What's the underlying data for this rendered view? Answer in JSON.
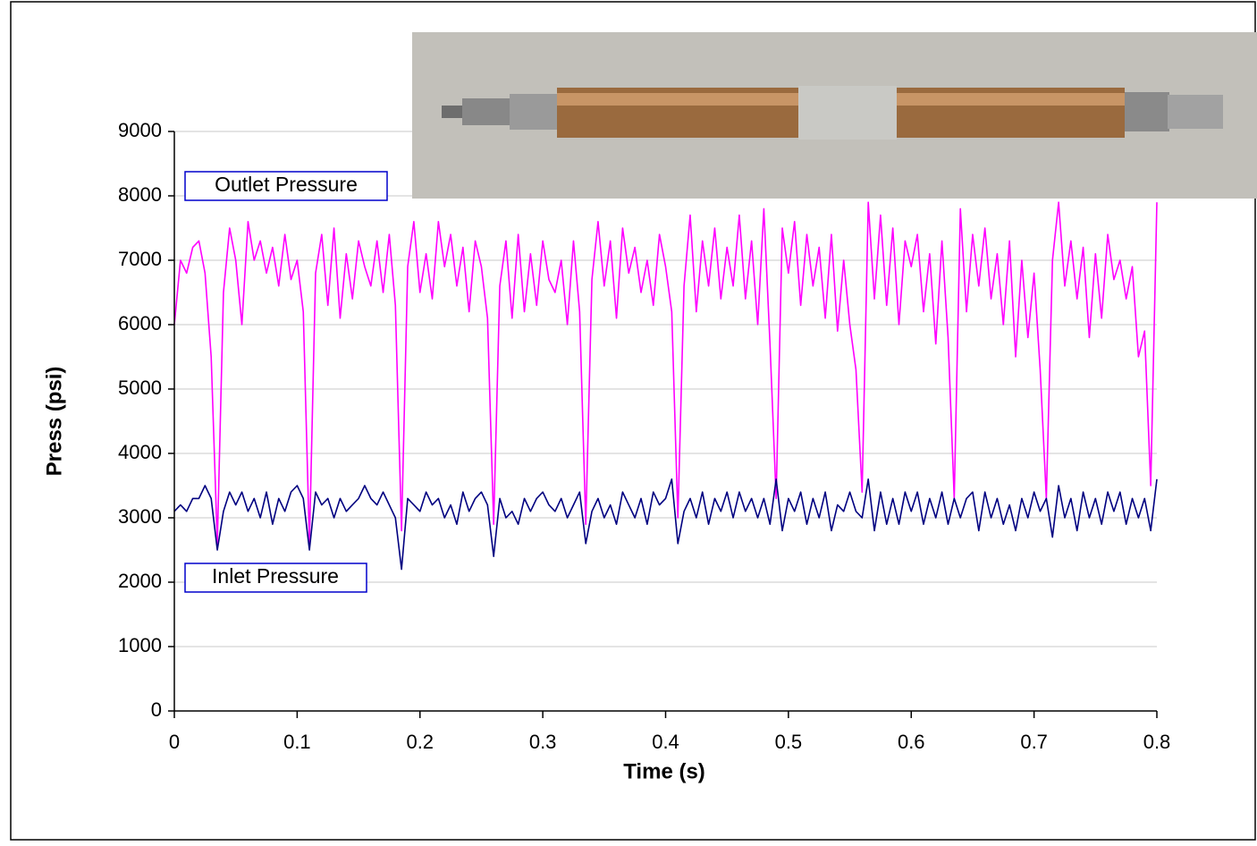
{
  "chart_data": {
    "type": "line",
    "x_label": "Time (s)",
    "y_label": "Press (psi)",
    "x": [
      0,
      0.005,
      0.01,
      0.015,
      0.02,
      0.025,
      0.03,
      0.035,
      0.04,
      0.045,
      0.05,
      0.055,
      0.06,
      0.065,
      0.07,
      0.075,
      0.08,
      0.085,
      0.09,
      0.095,
      0.1,
      0.105,
      0.11,
      0.115,
      0.12,
      0.125,
      0.13,
      0.135,
      0.14,
      0.145,
      0.15,
      0.155,
      0.16,
      0.165,
      0.17,
      0.175,
      0.18,
      0.185,
      0.19,
      0.195,
      0.2,
      0.205,
      0.21,
      0.215,
      0.22,
      0.225,
      0.23,
      0.235,
      0.24,
      0.245,
      0.25,
      0.255,
      0.26,
      0.265,
      0.27,
      0.275,
      0.28,
      0.285,
      0.29,
      0.295,
      0.3,
      0.305,
      0.31,
      0.315,
      0.32,
      0.325,
      0.33,
      0.335,
      0.34,
      0.345,
      0.35,
      0.355,
      0.36,
      0.365,
      0.37,
      0.375,
      0.38,
      0.385,
      0.39,
      0.395,
      0.4,
      0.405,
      0.41,
      0.415,
      0.42,
      0.425,
      0.43,
      0.435,
      0.44,
      0.445,
      0.45,
      0.455,
      0.46,
      0.465,
      0.47,
      0.475,
      0.48,
      0.485,
      0.49,
      0.495,
      0.5,
      0.505,
      0.51,
      0.515,
      0.52,
      0.525,
      0.53,
      0.535,
      0.54,
      0.545,
      0.55,
      0.555,
      0.56,
      0.565,
      0.57,
      0.575,
      0.58,
      0.585,
      0.59,
      0.595,
      0.6,
      0.605,
      0.61,
      0.615,
      0.62,
      0.625,
      0.63,
      0.635,
      0.64,
      0.645,
      0.65,
      0.655,
      0.66,
      0.665,
      0.67,
      0.675,
      0.68,
      0.685,
      0.69,
      0.695,
      0.7,
      0.705,
      0.71,
      0.715,
      0.72,
      0.725,
      0.73,
      0.735,
      0.74,
      0.745,
      0.75,
      0.755,
      0.76,
      0.765,
      0.77,
      0.775,
      0.78,
      0.785,
      0.79,
      0.795,
      0.8
    ],
    "series": [
      {
        "name": "Outlet Pressure",
        "color": "#ff00ff",
        "values": [
          6000,
          7000,
          6800,
          7200,
          7300,
          6800,
          5500,
          2600,
          6500,
          7500,
          7000,
          6000,
          7600,
          7000,
          7300,
          6800,
          7200,
          6600,
          7400,
          6700,
          7000,
          6200,
          2600,
          6800,
          7400,
          6300,
          7500,
          6100,
          7100,
          6400,
          7300,
          6900,
          6600,
          7300,
          6500,
          7400,
          6300,
          2800,
          6900,
          7600,
          6500,
          7100,
          6400,
          7600,
          6900,
          7400,
          6600,
          7200,
          6200,
          7300,
          6900,
          6100,
          2900,
          6600,
          7300,
          6100,
          7400,
          6200,
          7100,
          6300,
          7300,
          6700,
          6500,
          7000,
          6000,
          7300,
          6200,
          2900,
          6700,
          7600,
          6600,
          7300,
          6100,
          7500,
          6800,
          7200,
          6500,
          7000,
          6300,
          7400,
          6900,
          6200,
          3000,
          6600,
          7700,
          6200,
          7300,
          6600,
          7500,
          6400,
          7200,
          6600,
          7700,
          6400,
          7300,
          6000,
          7800,
          5700,
          3300,
          7500,
          6800,
          7600,
          6300,
          7400,
          6600,
          7200,
          6100,
          7400,
          5900,
          7000,
          6000,
          5300,
          3400,
          7900,
          6400,
          7700,
          6300,
          7500,
          6000,
          7300,
          6900,
          7400,
          6200,
          7100,
          5700,
          7300,
          5800,
          3300,
          7800,
          6200,
          7400,
          6600,
          7500,
          6400,
          7100,
          6000,
          7300,
          5500,
          7000,
          5800,
          6800,
          5300,
          3300,
          7000,
          7900,
          6600,
          7300,
          6400,
          7200,
          5800,
          7100,
          6100,
          7400,
          6700,
          7000,
          6400,
          6900,
          5500,
          5900,
          3500,
          7900
        ]
      },
      {
        "name": "Inlet Pressure",
        "color": "#000080",
        "values": [
          3100,
          3200,
          3100,
          3300,
          3300,
          3500,
          3300,
          2500,
          3100,
          3400,
          3200,
          3400,
          3100,
          3300,
          3000,
          3400,
          2900,
          3300,
          3100,
          3400,
          3500,
          3300,
          2500,
          3400,
          3200,
          3300,
          3000,
          3300,
          3100,
          3200,
          3300,
          3500,
          3300,
          3200,
          3400,
          3200,
          3000,
          2200,
          3300,
          3200,
          3100,
          3400,
          3200,
          3300,
          3000,
          3200,
          2900,
          3400,
          3100,
          3300,
          3400,
          3200,
          2400,
          3300,
          3000,
          3100,
          2900,
          3300,
          3100,
          3300,
          3400,
          3200,
          3100,
          3300,
          3000,
          3200,
          3400,
          2600,
          3100,
          3300,
          3000,
          3200,
          2900,
          3400,
          3200,
          3000,
          3300,
          2900,
          3400,
          3200,
          3300,
          3600,
          2600,
          3100,
          3300,
          3000,
          3400,
          2900,
          3300,
          3100,
          3400,
          3000,
          3400,
          3100,
          3300,
          3000,
          3300,
          2900,
          3600,
          2800,
          3300,
          3100,
          3400,
          2900,
          3300,
          3000,
          3400,
          2800,
          3200,
          3100,
          3400,
          3100,
          3000,
          3600,
          2800,
          3400,
          2900,
          3300,
          2900,
          3400,
          3100,
          3400,
          2900,
          3300,
          3000,
          3400,
          2900,
          3300,
          3000,
          3300,
          3400,
          2800,
          3400,
          3000,
          3300,
          2900,
          3200,
          2800,
          3300,
          3000,
          3400,
          3100,
          3300,
          2700,
          3500,
          3000,
          3300,
          2800,
          3400,
          3000,
          3300,
          2900,
          3400,
          3100,
          3400,
          2900,
          3300,
          3000,
          3300,
          2800,
          3600
        ]
      }
    ],
    "xlim": [
      0,
      0.8
    ],
    "xticks": [
      0,
      0.1,
      0.2,
      0.3,
      0.4,
      0.5,
      0.6,
      0.7,
      0.8
    ],
    "ylim": [
      0,
      9000
    ],
    "yticks": [
      0,
      1000,
      2000,
      3000,
      4000,
      5000,
      6000,
      7000,
      8000,
      9000
    ],
    "grid": true
  }
}
